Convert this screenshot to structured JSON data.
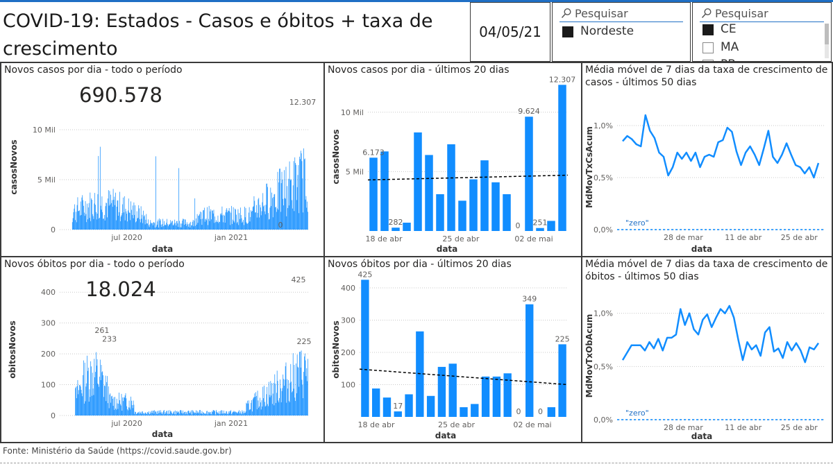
{
  "header": {
    "title": "COVID-19: Estados - Casos e óbitos + taxa de crescimento",
    "date": "04/05/21"
  },
  "slicer_region": {
    "search_placeholder": "Pesquisar",
    "options": [
      {
        "label": "Nordeste",
        "selected": true
      }
    ]
  },
  "slicer_state": {
    "search_placeholder": "Pesquisar",
    "options": [
      {
        "label": "CE",
        "selected": true
      },
      {
        "label": "MA",
        "selected": false
      },
      {
        "label": "PB",
        "selected": false
      }
    ]
  },
  "footer": {
    "source": "Fonte: Ministério da Saúde (https://covid.saude.gov.br)"
  },
  "colors": {
    "bar": "#118dff",
    "line": "#118dff",
    "trend": "#000000",
    "zero": "#41a4ff",
    "grid": "#c8c8c8"
  },
  "chart_data": [
    {
      "id": "cases_all",
      "type": "bar",
      "title": "Novos casos por dia - todo o período",
      "card_value": "690.578",
      "xlabel": "data",
      "ylabel": "casosNovos",
      "xticks": [
        "jul 2020",
        "jan 2021"
      ],
      "yticks": [
        "0",
        "5 Mil",
        "10 Mil"
      ],
      "ylim": [
        0,
        12500
      ],
      "annotations": [
        {
          "text": "12.307",
          "value": 12307
        },
        {
          "text": "0",
          "value": 0
        }
      ],
      "shape": "daily_cases"
    },
    {
      "id": "cases_20d",
      "type": "bar",
      "title": "Novos casos por dia - últimos 20 dias",
      "xlabel": "data",
      "ylabel": "casosNovos",
      "xticks": [
        "18 de abr",
        "25 de abr",
        "02 de mai"
      ],
      "yticks": [
        "5 Mil",
        "10 Mil"
      ],
      "ylim": [
        0,
        12500
      ],
      "values": [
        6173,
        6700,
        282,
        700,
        8300,
        6400,
        3100,
        7300,
        2550,
        4350,
        5950,
        4100,
        3100,
        0,
        9624,
        251,
        850,
        12307
      ],
      "data_labels": [
        {
          "index": 0,
          "text": "6.173"
        },
        {
          "index": 2,
          "text": "282"
        },
        {
          "index": 13,
          "text": "0"
        },
        {
          "index": 14,
          "text": "9.624"
        },
        {
          "index": 15,
          "text": "251"
        },
        {
          "index": 17,
          "text": "12.307"
        }
      ],
      "trend": [
        4300,
        4700
      ]
    },
    {
      "id": "cases_growth",
      "type": "line",
      "title": "Média móvel de 7 dias da taxa de crescimento de casos - últimos 50 dias",
      "xlabel": "data",
      "ylabel": "MdMovTxCsAcum",
      "xticks": [
        "28 de mar",
        "11 de abr",
        "25 de abr"
      ],
      "yticks": [
        "0,0%",
        "0,5%",
        "1,0%"
      ],
      "ylim": [
        0,
        1.2
      ],
      "zero_label": "\"zero\"",
      "values": [
        0.85,
        0.9,
        0.87,
        0.82,
        0.8,
        1.1,
        0.95,
        0.88,
        0.74,
        0.7,
        0.52,
        0.6,
        0.74,
        0.68,
        0.74,
        0.66,
        0.74,
        0.6,
        0.7,
        0.72,
        0.7,
        0.84,
        0.86,
        0.98,
        0.94,
        0.75,
        0.62,
        0.74,
        0.8,
        0.72,
        0.62,
        0.78,
        0.95,
        0.7,
        0.64,
        0.72,
        0.83,
        0.72,
        0.62,
        0.6,
        0.54,
        0.6,
        0.5,
        0.64
      ]
    },
    {
      "id": "deaths_all",
      "type": "bar",
      "title": "Novos óbitos por dia - todo o período",
      "card_value": "18.024",
      "xlabel": "data",
      "ylabel": "obitosNovos",
      "xticks": [
        "jul 2020",
        "jan 2021"
      ],
      "yticks": [
        "0",
        "100",
        "200",
        "300",
        "400"
      ],
      "ylim": [
        0,
        450
      ],
      "annotations": [
        {
          "text": "261",
          "value": 261
        },
        {
          "text": "233",
          "value": 233
        },
        {
          "text": "425",
          "value": 425
        },
        {
          "text": "225",
          "value": 225
        }
      ],
      "shape": "daily_deaths"
    },
    {
      "id": "deaths_20d",
      "type": "bar",
      "title": "Novos óbitos por dia - últimos 20 dias",
      "xlabel": "data",
      "ylabel": "obitosNovos",
      "xticks": [
        "18 de abr",
        "25 de abr",
        "02 de mai"
      ],
      "yticks": [
        "100",
        "200",
        "300",
        "400"
      ],
      "ylim": [
        0,
        430
      ],
      "values": [
        425,
        88,
        60,
        17,
        70,
        265,
        65,
        155,
        165,
        30,
        40,
        125,
        125,
        135,
        0,
        349,
        0,
        30,
        225
      ],
      "data_labels": [
        {
          "index": 0,
          "text": "425"
        },
        {
          "index": 3,
          "text": "17"
        },
        {
          "index": 14,
          "text": "0"
        },
        {
          "index": 15,
          "text": "349"
        },
        {
          "index": 16,
          "text": "0"
        },
        {
          "index": 18,
          "text": "225"
        }
      ],
      "trend": [
        148,
        100
      ]
    },
    {
      "id": "deaths_growth",
      "type": "line",
      "title": "Média móvel de 7 dias da taxa de crescimento de óbitos - últimos 50 dias",
      "xlabel": "data",
      "ylabel": "MdMovTxObAcum",
      "xticks": [
        "28 de mar",
        "11 de abr",
        "25 de abr"
      ],
      "yticks": [
        "0,0%",
        "0,5%",
        "1,0%"
      ],
      "ylim": [
        0,
        1.2
      ],
      "zero_label": "\"zero\"",
      "values": [
        0.56,
        0.63,
        0.7,
        0.7,
        0.7,
        0.65,
        0.73,
        0.67,
        0.76,
        0.65,
        0.77,
        0.77,
        0.8,
        1.04,
        0.89,
        1.0,
        0.85,
        0.8,
        0.94,
        0.99,
        0.87,
        0.96,
        1.04,
        1.0,
        1.07,
        0.96,
        0.75,
        0.56,
        0.73,
        0.66,
        0.7,
        0.6,
        0.82,
        0.87,
        0.64,
        0.67,
        0.58,
        0.73,
        0.65,
        0.72,
        0.65,
        0.54,
        0.68,
        0.66,
        0.72
      ]
    }
  ]
}
